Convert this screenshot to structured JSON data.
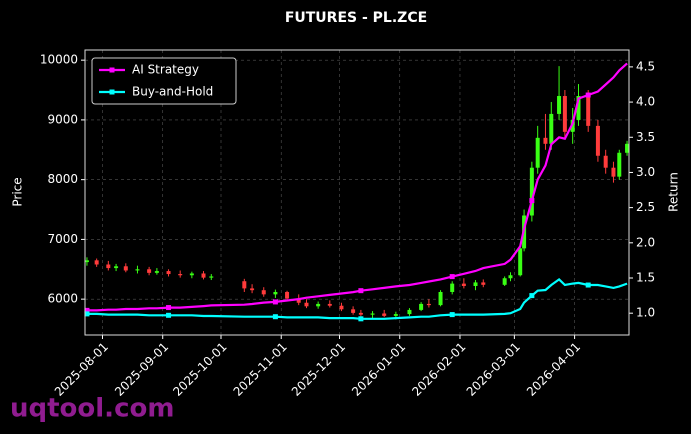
{
  "chart_data": {
    "type": "candlestick",
    "title": "FUTURES - PL.ZCE",
    "ylabel": "Price",
    "y2label": "Return",
    "watermark": "uqtool.com",
    "up_color": "#39ff14",
    "down_color": "#ff3b3b",
    "grid": true,
    "legend": "upper left",
    "x": [
      "2025-07-24",
      "2025-07-29",
      "2025-08-04",
      "2025-08-08",
      "2025-08-13",
      "2025-08-19",
      "2025-08-25",
      "2025-08-29",
      "2025-09-04",
      "2025-09-10",
      "2025-09-16",
      "2025-09-22",
      "2025-09-26",
      "2025-10-13",
      "2025-10-17",
      "2025-10-23",
      "2025-10-29",
      "2025-11-04",
      "2025-11-10",
      "2025-11-14",
      "2025-11-20",
      "2025-11-26",
      "2025-12-02",
      "2025-12-08",
      "2025-12-12",
      "2025-12-18",
      "2025-12-24",
      "2025-12-30",
      "2026-01-06",
      "2026-01-12",
      "2026-01-16",
      "2026-01-22",
      "2026-01-28",
      "2026-02-03",
      "2026-02-09",
      "2026-02-13",
      "2026-02-24",
      "2026-02-27",
      "2026-03-04",
      "2026-03-06",
      "2026-03-10",
      "2026-03-13",
      "2026-03-17",
      "2026-03-20",
      "2026-03-24",
      "2026-03-27",
      "2026-03-31",
      "2026-04-03",
      "2026-04-08",
      "2026-04-13",
      "2026-04-17",
      "2026-04-21",
      "2026-04-24",
      "2026-04-28"
    ],
    "open": [
      6620,
      6650,
      6580,
      6520,
      6550,
      6480,
      6500,
      6440,
      6470,
      6420,
      6400,
      6430,
      6360,
      6300,
      6180,
      6150,
      6080,
      6120,
      6010,
      5940,
      5880,
      5920,
      5890,
      5830,
      5770,
      5740,
      5760,
      5720,
      5750,
      5820,
      5920,
      5900,
      6120,
      6260,
      6220,
      6280,
      6240,
      6350,
      6400,
      6850,
      7400,
      8200,
      8700,
      8600,
      9100,
      9400,
      8800,
      9000,
      9400,
      8900,
      8400,
      8200,
      8050,
      8450
    ],
    "high": [
      6700,
      6680,
      6640,
      6590,
      6600,
      6560,
      6540,
      6520,
      6500,
      6480,
      6460,
      6470,
      6420,
      6340,
      6250,
      6200,
      6160,
      6140,
      6080,
      6000,
      5960,
      5980,
      5940,
      5880,
      5820,
      5800,
      5820,
      5790,
      5850,
      5950,
      6000,
      6150,
      6300,
      6350,
      6320,
      6330,
      6380,
      6450,
      6900,
      7500,
      8300,
      8900,
      9100,
      9300,
      9900,
      9500,
      9200,
      9600,
      9500,
      9000,
      8500,
      8300,
      8500,
      8650
    ],
    "low": [
      6560,
      6540,
      6480,
      6470,
      6450,
      6430,
      6400,
      6410,
      6380,
      6360,
      6350,
      6330,
      6320,
      6120,
      6100,
      6040,
      6020,
      5980,
      5900,
      5850,
      5840,
      5860,
      5800,
      5740,
      5700,
      5680,
      5700,
      5660,
      5720,
      5800,
      5860,
      5880,
      6080,
      6180,
      6150,
      6200,
      6220,
      6300,
      6380,
      6800,
      7300,
      8100,
      8500,
      8500,
      9000,
      8700,
      8600,
      8900,
      8800,
      8300,
      8100,
      7950,
      8000,
      8400
    ],
    "close": [
      6650,
      6580,
      6520,
      6550,
      6480,
      6500,
      6440,
      6470,
      6420,
      6400,
      6430,
      6360,
      6380,
      6180,
      6150,
      6080,
      6120,
      6010,
      5940,
      5880,
      5920,
      5890,
      5830,
      5770,
      5740,
      5760,
      5720,
      5750,
      5820,
      5920,
      5900,
      6120,
      6260,
      6220,
      6280,
      6240,
      6350,
      6400,
      6850,
      7400,
      8200,
      8700,
      8600,
      9100,
      9400,
      8800,
      9000,
      9400,
      8900,
      8400,
      8200,
      8050,
      8450,
      8600
    ],
    "series": [
      {
        "name": "AI Strategy",
        "color": "#ff00ff",
        "axis": "y2",
        "values": [
          1.04,
          1.04,
          1.05,
          1.05,
          1.06,
          1.06,
          1.07,
          1.07,
          1.08,
          1.08,
          1.09,
          1.1,
          1.11,
          1.12,
          1.13,
          1.15,
          1.16,
          1.18,
          1.2,
          1.22,
          1.24,
          1.26,
          1.28,
          1.3,
          1.32,
          1.34,
          1.36,
          1.38,
          1.4,
          1.43,
          1.45,
          1.48,
          1.52,
          1.56,
          1.6,
          1.64,
          1.7,
          1.76,
          1.95,
          2.2,
          2.6,
          2.9,
          3.1,
          3.4,
          3.5,
          3.48,
          3.7,
          4.05,
          4.1,
          4.15,
          4.25,
          4.35,
          4.45,
          4.55
        ]
      },
      {
        "name": "Buy-and-Hold",
        "color": "#00ffff",
        "axis": "y2",
        "values": [
          0.99,
          0.99,
          0.98,
          0.98,
          0.98,
          0.98,
          0.97,
          0.97,
          0.97,
          0.97,
          0.97,
          0.96,
          0.96,
          0.95,
          0.95,
          0.95,
          0.95,
          0.94,
          0.94,
          0.94,
          0.94,
          0.93,
          0.93,
          0.93,
          0.92,
          0.92,
          0.92,
          0.93,
          0.94,
          0.95,
          0.95,
          0.97,
          0.98,
          0.98,
          0.98,
          0.98,
          0.99,
          1.0,
          1.06,
          1.15,
          1.25,
          1.32,
          1.33,
          1.4,
          1.48,
          1.4,
          1.42,
          1.43,
          1.4,
          1.4,
          1.38,
          1.36,
          1.38,
          1.42
        ]
      }
    ],
    "xlim": [
      "2025-07-23",
      "2026-04-29"
    ],
    "xticks": [
      "2025-08-01",
      "2025-09-01",
      "2025-10-01",
      "2025-11-01",
      "2025-12-01",
      "2026-01-01",
      "2026-02-01",
      "2026-03-01",
      "2026-04-01"
    ],
    "ylim": [
      5400,
      10170
    ],
    "yticks": [
      6000,
      7000,
      8000,
      9000,
      10000
    ],
    "y2lim": [
      0.69,
      4.74
    ],
    "y2ticks": [
      {
        "value": 1,
        "label": "1.0"
      },
      1.5,
      {
        "value": 2,
        "label": "2.0"
      },
      2.5,
      {
        "value": 3,
        "label": "3.0"
      },
      3.5,
      {
        "value": 4,
        "label": "4.0"
      },
      4.5
    ]
  }
}
